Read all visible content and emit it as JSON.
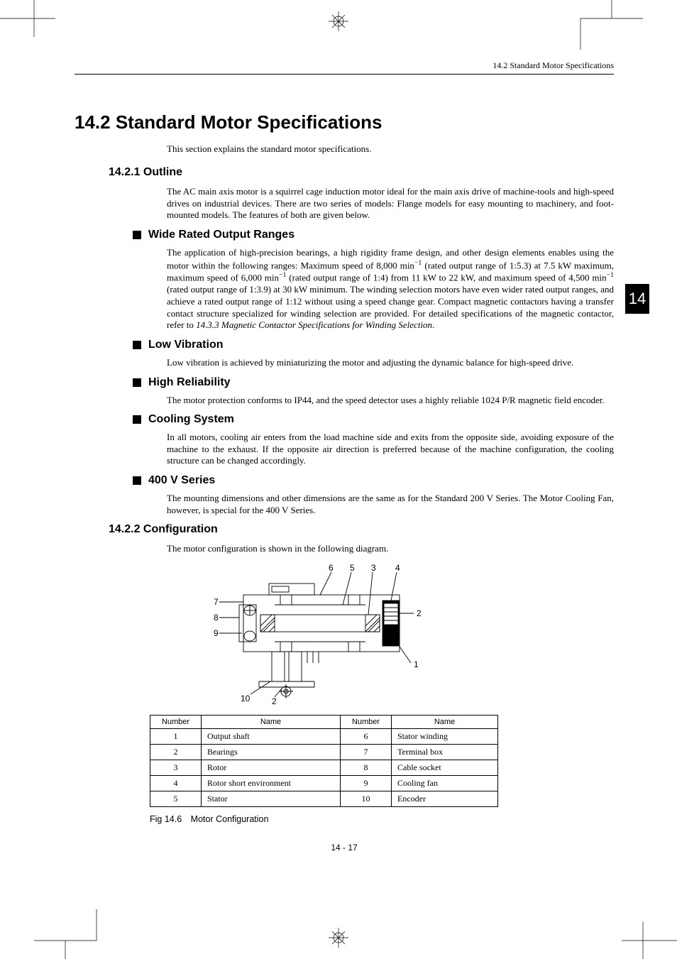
{
  "running_head": "14.2 Standard Motor Specifications",
  "chapter_tab": "14",
  "h1": "14.2 Standard Motor Specifications",
  "intro": "This section explains the standard motor specifications.",
  "sections": {
    "outline": {
      "heading": "14.2.1 Outline",
      "body": "The AC main axis motor is a squirrel cage induction motor ideal for the main axis drive of machine-tools and high-speed drives on industrial devices. There are two series of models: Flange models for easy mounting to machinery, and foot-mounted models. The features of both are given below."
    },
    "wide": {
      "heading": "Wide Rated Output Ranges",
      "body_html": "The application of high-precision bearings, a high rigidity frame design, and other design elements enables using the motor within the following ranges: Maximum speed of 8,000 min<sup>−1</sup> (rated output range of 1:5.3) at 7.5 kW maximum, maximum speed of 6,000 min<sup>−1</sup> (rated output range of 1:4) from 11 kW to 22 kW, and maximum speed of 4,500 min<sup>−1</sup> (rated output range of 1:3.9) at 30 kW minimum. The winding selection motors have even wider rated output ranges, and achieve a rated output range of 1:12 without using a speed change gear. Compact magnetic contactors having a transfer contact structure specialized for winding selection are provided. For detailed specifications of the magnetic contactor, refer to <i>14.3.3 Magnetic Contactor Specifications for Winding Selection</i>."
    },
    "lowvib": {
      "heading": "Low Vibration",
      "body": "Low vibration is achieved by miniaturizing the motor and adjusting the dynamic balance for high-speed drive."
    },
    "highrel": {
      "heading": "High Reliability",
      "body": "The motor protection conforms to IP44, and the speed detector uses a highly reliable 1024 P/R magnetic field encoder."
    },
    "cooling": {
      "heading": "Cooling System",
      "body": "In all motors, cooling air enters from the load machine side and exits from the opposite side, avoiding exposure of the machine to the exhaust. If the opposite air direction is preferred because of the machine configuration, the cooling structure can be changed accordingly."
    },
    "v400": {
      "heading": "400 V Series",
      "body": "The mounting dimensions and other dimensions are the same as for the Standard 200 V Series. The Motor Cooling Fan, however, is special for the 400 V Series."
    },
    "config": {
      "heading": "14.2.2 Configuration",
      "body": "The motor configuration is shown in the following diagram."
    }
  },
  "diagram": {
    "callouts": {
      "n1": "1",
      "n2a": "2",
      "n2b": "2",
      "n3": "3",
      "n4": "4",
      "n5": "5",
      "n6": "6",
      "n7": "7",
      "n8": "8",
      "n9": "9",
      "n10": "10"
    }
  },
  "table": {
    "headers": {
      "num": "Number",
      "name": "Name"
    },
    "rows": [
      {
        "a_num": "1",
        "a_name": "Output shaft",
        "b_num": "6",
        "b_name": "Stator winding"
      },
      {
        "a_num": "2",
        "a_name": "Bearings",
        "b_num": "7",
        "b_name": "Terminal box"
      },
      {
        "a_num": "3",
        "a_name": "Rotor",
        "b_num": "8",
        "b_name": "Cable socket"
      },
      {
        "a_num": "4",
        "a_name": "Rotor short environment",
        "b_num": "9",
        "b_name": "Cooling fan"
      },
      {
        "a_num": "5",
        "a_name": "Stator",
        "b_num": "10",
        "b_name": "Encoder"
      }
    ]
  },
  "figure_caption": "Fig 14.6 Motor Configuration",
  "page_number": "14 - 17"
}
